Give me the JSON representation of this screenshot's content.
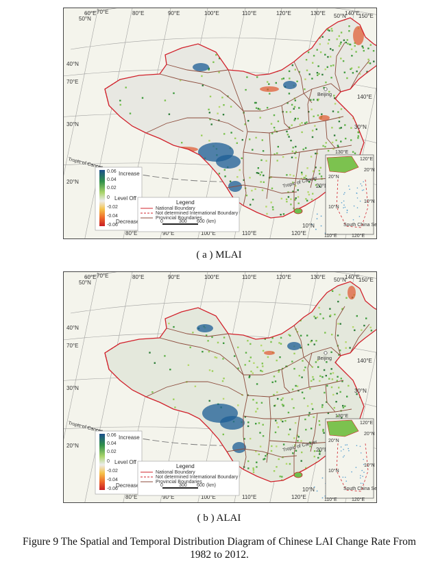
{
  "panels": [
    {
      "id": "a",
      "caption": "( a ) MLAI",
      "variant": "mlai",
      "lon_labels_top": [
        "60°E",
        "70°E",
        "80°E",
        "90°E",
        "100°E",
        "110°E",
        "120°E",
        "130°E",
        "140°E",
        "150°E"
      ],
      "lon_labels_bottom": [
        "80°E",
        "90°E",
        "100°E",
        "110°E",
        "120°E"
      ],
      "lat_labels_left": [
        "50°N",
        "40°N",
        "70°E",
        "30°N",
        "20°N"
      ],
      "lat_labels_right": [
        "50°N",
        "140°E",
        "30°N",
        "20°N",
        "10°N"
      ],
      "tropic_label": "Tropic of Cancer",
      "capital_label": "Beijing",
      "colorbar": {
        "ticks": [
          "0.06",
          "0.04",
          "0.02",
          "0",
          "-0.02",
          "-0.04",
          "-0.06"
        ],
        "increase": "Increase",
        "level": "Level Off",
        "decrease": "Decrease"
      },
      "legend": {
        "title": "Legend",
        "items": [
          "National Boundary",
          "Not determined International Boundary",
          "Provincial Boundaries"
        ],
        "scale": [
          "0",
          "300",
          "600",
          "(km)"
        ]
      },
      "inset": {
        "labels": [
          "130°E",
          "120°E",
          "20°N",
          "20°N",
          "10°N",
          "10°N",
          "110°E",
          "120°E"
        ],
        "title": "South China Sea Islands"
      }
    },
    {
      "id": "b",
      "caption": "( b ) ALAI",
      "variant": "alai",
      "lon_labels_top": [
        "60°E",
        "70°E",
        "80°E",
        "90°E",
        "100°E",
        "110°E",
        "120°E",
        "130°E",
        "140°E",
        "150°E"
      ],
      "lon_labels_bottom": [
        "80°E",
        "90°E",
        "100°E",
        "110°E",
        "120°E"
      ],
      "lat_labels_left": [
        "50°N",
        "40°N",
        "70°E",
        "30°N",
        "20°N"
      ],
      "lat_labels_right": [
        "50°N",
        "140°E",
        "30°N",
        "20°N",
        "10°N"
      ],
      "tropic_label": "Tropic of Cancer",
      "capital_label": "Beijing",
      "colorbar": {
        "ticks": [
          "0.06",
          "0.04",
          "0.02",
          "0",
          "-0.02",
          "-0.04",
          "-0.06"
        ],
        "increase": "Increase",
        "level": "Level Off",
        "decrease": "Decrease"
      },
      "legend": {
        "title": "Legend",
        "items": [
          "National Boundary",
          "Not determined International Boundary",
          "Provincial Boundaries"
        ],
        "scale": [
          "0",
          "300",
          "600",
          "(km)"
        ]
      },
      "inset": {
        "labels": [
          "130°E",
          "120°E",
          "20°N",
          "20°N",
          "10°N",
          "10°N",
          "110°E",
          "120°E"
        ],
        "title": "South China Sea Islands"
      }
    }
  ],
  "figure_caption_line1": "Figure 9 The Spatial and Temporal Distribution Diagram of Chinese LAI Change Rate From",
  "figure_caption_line2": "1982 to 2012."
}
